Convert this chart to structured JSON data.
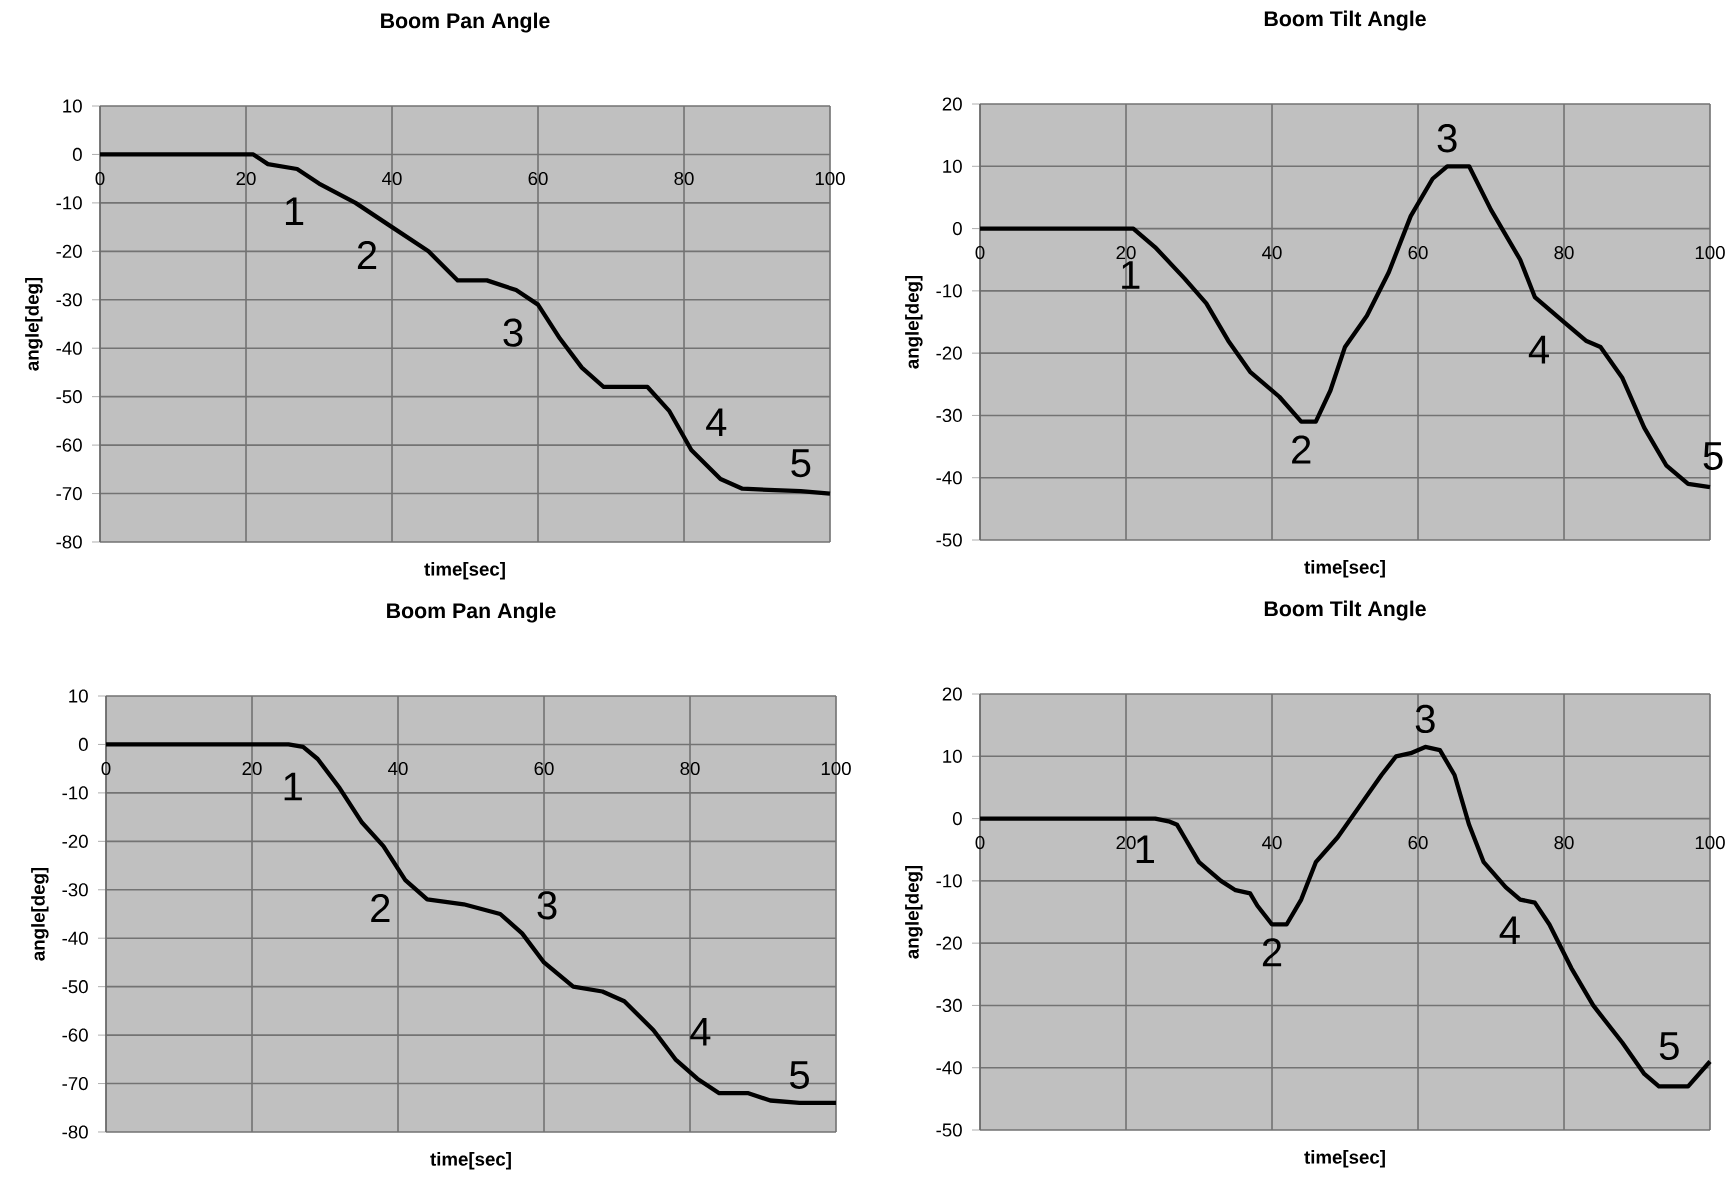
{
  "chart_data": [
    {
      "type": "line",
      "title": "Boom Pan Angle",
      "xlabel": "time[sec]",
      "ylabel": "angle[deg]",
      "color": "#000000",
      "grid": true,
      "xlim": [
        0,
        100
      ],
      "ylim": [
        -80,
        10
      ],
      "xticks": [
        0,
        20,
        40,
        60,
        80,
        100
      ],
      "yticks": [
        -80,
        -70,
        -60,
        -50,
        -40,
        -30,
        -20,
        -10,
        0,
        10
      ],
      "x": [
        0,
        21,
        22,
        23,
        27,
        30,
        35,
        40,
        45,
        49,
        53,
        57,
        60,
        63,
        66,
        69,
        75,
        78,
        81,
        85,
        88,
        96,
        100
      ],
      "values": [
        0,
        0,
        -1,
        -2,
        -3,
        -6,
        -10,
        -15,
        -20,
        -26,
        -26,
        -28,
        -31,
        -38,
        -44,
        -48,
        -48,
        -53,
        -61,
        -67,
        -69,
        -69.5,
        -70
      ],
      "annotations": [
        {
          "text": "1",
          "x": 30,
          "y": -6
        },
        {
          "text": "2",
          "x": 40,
          "y": -15
        },
        {
          "text": "3",
          "x": 60,
          "y": -31
        },
        {
          "text": "4",
          "x": 81,
          "y": -61
        },
        {
          "text": "5",
          "x": 96,
          "y": -69.5
        }
      ]
    },
    {
      "type": "line",
      "title": "Boom Tilt Angle",
      "xlabel": "time[sec]",
      "ylabel": "angle[deg]",
      "color": "#000000",
      "grid": true,
      "xlim": [
        0,
        100
      ],
      "ylim": [
        -50,
        20
      ],
      "xticks": [
        0,
        20,
        40,
        60,
        80,
        100
      ],
      "yticks": [
        -50,
        -40,
        -30,
        -20,
        -10,
        0,
        10,
        20
      ],
      "x": [
        0,
        21,
        24,
        28,
        31,
        34,
        37,
        41,
        44,
        46,
        48,
        50,
        53,
        56,
        59,
        62,
        64,
        67,
        70,
        74,
        76,
        80,
        83,
        85,
        88,
        91,
        94,
        97,
        100
      ],
      "values": [
        0,
        0,
        -3,
        -8,
        -12,
        -18,
        -23,
        -27,
        -31,
        -31,
        -26,
        -19,
        -14,
        -7,
        2,
        8,
        10,
        10,
        3,
        -5,
        -11,
        -15,
        -18,
        -19,
        -24,
        -32,
        -38,
        -41,
        -41.5
      ],
      "annotations": [
        {
          "text": "1",
          "x": 24,
          "y": -3
        },
        {
          "text": "2",
          "x": 44,
          "y": -31
        },
        {
          "text": "3",
          "x": 64,
          "y": 10
        },
        {
          "text": "4",
          "x": 80,
          "y": -15
        },
        {
          "text": "5",
          "x": 97,
          "y": -41
        }
      ]
    },
    {
      "type": "line",
      "title": "Boom Pan Angle",
      "xlabel": "time[sec]",
      "ylabel": "angle[deg]",
      "color": "#000000",
      "grid": true,
      "xlim": [
        0,
        100
      ],
      "ylim": [
        -80,
        10
      ],
      "xticks": [
        0,
        20,
        40,
        60,
        80,
        100
      ],
      "yticks": [
        -80,
        -70,
        -60,
        -50,
        -40,
        -30,
        -20,
        -10,
        0,
        10
      ],
      "x": [
        0,
        25,
        27,
        29,
        32,
        35,
        38,
        41,
        44,
        49,
        54,
        57,
        60,
        64,
        68,
        71,
        75,
        78,
        81,
        84,
        88,
        91,
        95,
        100
      ],
      "values": [
        0,
        0,
        -0.5,
        -3,
        -9,
        -16,
        -21,
        -28,
        -32,
        -33,
        -35,
        -39,
        -45,
        -50,
        -51,
        -53,
        -59,
        -65,
        -69,
        -72,
        -72,
        -73.5,
        -74,
        -74
      ],
      "annotations": [
        {
          "text": "1",
          "x": 29,
          "y": -3
        },
        {
          "text": "2",
          "x": 41,
          "y": -28
        },
        {
          "text": "3",
          "x": 57,
          "y": -39
        },
        {
          "text": "4",
          "x": 78,
          "y": -65
        },
        {
          "text": "5",
          "x": 95,
          "y": -74
        }
      ]
    },
    {
      "type": "line",
      "title": "Boom Tilt Angle",
      "xlabel": "time[sec]",
      "ylabel": "angle[deg]",
      "color": "#000000",
      "grid": true,
      "xlim": [
        0,
        100
      ],
      "ylim": [
        -50,
        20
      ],
      "xticks": [
        0,
        20,
        40,
        60,
        80,
        100
      ],
      "yticks": [
        -50,
        -40,
        -30,
        -20,
        -10,
        0,
        10,
        20
      ],
      "x": [
        0,
        24,
        26,
        27,
        28,
        30,
        33,
        35,
        37,
        38,
        40,
        42,
        44,
        46,
        49,
        52,
        55,
        57,
        59,
        61,
        63,
        65,
        67,
        69,
        72,
        74,
        76,
        78,
        81,
        84,
        88,
        91,
        93,
        97,
        100
      ],
      "values": [
        0,
        0,
        -0.5,
        -1,
        -3,
        -7,
        -10,
        -11.5,
        -12,
        -14,
        -17,
        -17,
        -13,
        -7,
        -3,
        2,
        7,
        10,
        10.5,
        11.5,
        11,
        7,
        -1,
        -7,
        -11,
        -13,
        -13.5,
        -17,
        -24,
        -30,
        -36,
        -41,
        -43,
        -43,
        -39
      ],
      "annotations": [
        {
          "text": "1",
          "x": 26,
          "y": -0.5
        },
        {
          "text": "2",
          "x": 40,
          "y": -17
        },
        {
          "text": "3",
          "x": 61,
          "y": 11.5
        },
        {
          "text": "4",
          "x": 76,
          "y": -13.5
        },
        {
          "text": "5",
          "x": 91,
          "y": -41
        }
      ]
    }
  ]
}
